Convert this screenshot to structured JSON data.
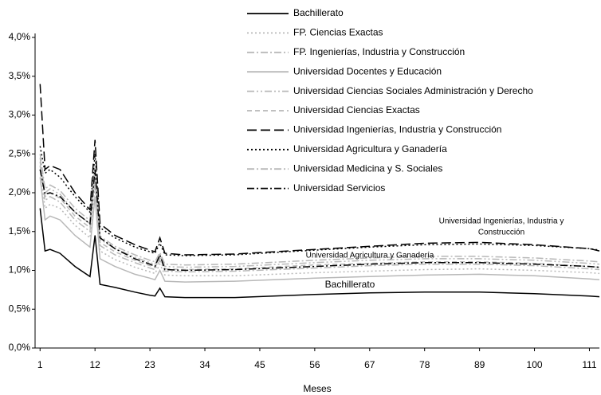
{
  "chart_data": {
    "type": "line",
    "xlabel": "Meses",
    "x": [
      1,
      2,
      3,
      5,
      8,
      11,
      12,
      13,
      16,
      20,
      23,
      24,
      25,
      26,
      30,
      40,
      56,
      67,
      78,
      89,
      100,
      111,
      113
    ],
    "xlim": [
      0,
      113
    ],
    "xticks": [
      1,
      12,
      23,
      34,
      45,
      56,
      67,
      78,
      89,
      100,
      111
    ],
    "ylim": [
      0,
      4
    ],
    "yticks": [
      {
        "value": 0,
        "label": "0,0%"
      },
      {
        "value": 0.5,
        "label": "0,5%"
      },
      {
        "value": 1,
        "label": "1,0%"
      },
      {
        "value": 1.5,
        "label": "1,5%"
      },
      {
        "value": 2,
        "label": "2,0%"
      },
      {
        "value": 2.5,
        "label": "2,5%"
      },
      {
        "value": 3,
        "label": "3,0%"
      },
      {
        "value": 3.5,
        "label": "3,5%"
      },
      {
        "value": 4,
        "label": "4,0%"
      }
    ],
    "legend": "top",
    "series": [
      {
        "name": "Bachillerato",
        "color": "#000000",
        "dash": "solid",
        "values": [
          1.8,
          1.25,
          1.27,
          1.22,
          1.05,
          0.92,
          1.45,
          0.82,
          0.78,
          0.72,
          0.68,
          0.67,
          0.77,
          0.66,
          0.65,
          0.65,
          0.69,
          0.71,
          0.72,
          0.72,
          0.7,
          0.67,
          0.66
        ]
      },
      {
        "name": "FP. Ciencias Exactas",
        "color": "#b8b8b8",
        "dash": "dotted",
        "values": [
          2.3,
          1.8,
          1.85,
          1.8,
          1.58,
          1.42,
          2.1,
          1.25,
          1.14,
          1.04,
          0.98,
          0.96,
          1.08,
          0.94,
          0.93,
          0.93,
          0.97,
          0.99,
          1.01,
          1.02,
          1.0,
          0.97,
          0.96
        ]
      },
      {
        "name": "FP.  Ingenierías, Industria y Construcción",
        "color": "#b8b8b8",
        "dash": "dash-dot",
        "values": [
          2.35,
          1.9,
          1.95,
          1.88,
          1.65,
          1.5,
          2.2,
          1.32,
          1.2,
          1.1,
          1.03,
          1.01,
          1.13,
          0.99,
          0.98,
          0.99,
          1.03,
          1.06,
          1.08,
          1.08,
          1.06,
          1.02,
          1.01
        ]
      },
      {
        "name": "Universidad Docentes y Educación",
        "color": "#b8b8b8",
        "dash": "solid",
        "values": [
          2.2,
          1.65,
          1.7,
          1.65,
          1.45,
          1.3,
          1.95,
          1.15,
          1.05,
          0.95,
          0.9,
          0.88,
          1.0,
          0.86,
          0.85,
          0.86,
          0.9,
          0.92,
          0.94,
          0.95,
          0.93,
          0.89,
          0.88
        ]
      },
      {
        "name": "Universidad Ciencias Sociales Administración y Derecho",
        "color": "#b8b8b8",
        "dash": "dash-dot-dot",
        "values": [
          2.45,
          2.0,
          2.05,
          1.98,
          1.75,
          1.6,
          2.3,
          1.4,
          1.28,
          1.17,
          1.1,
          1.08,
          1.2,
          1.05,
          1.04,
          1.05,
          1.1,
          1.13,
          1.15,
          1.15,
          1.13,
          1.09,
          1.08
        ]
      },
      {
        "name": "Universidad Ciencias Exactas",
        "color": "#b8b8b8",
        "dash": "dashed",
        "values": [
          2.4,
          1.95,
          2.0,
          1.93,
          1.7,
          1.55,
          2.25,
          1.36,
          1.24,
          1.13,
          1.06,
          1.04,
          1.16,
          1.02,
          1.01,
          1.02,
          1.07,
          1.09,
          1.11,
          1.11,
          1.09,
          1.05,
          1.04
        ]
      },
      {
        "name": "Universidad Ingenierías, Industria y Construcción",
        "color": "#000000",
        "dash": "long-dash",
        "values": [
          3.4,
          2.3,
          2.35,
          2.3,
          2.0,
          1.78,
          2.68,
          1.6,
          1.45,
          1.33,
          1.26,
          1.24,
          1.42,
          1.22,
          1.2,
          1.21,
          1.27,
          1.31,
          1.35,
          1.36,
          1.33,
          1.28,
          1.25
        ]
      },
      {
        "name": "Universidad Agricultura y Ganadería",
        "color": "#000000",
        "dash": "dotted",
        "values": [
          2.6,
          2.25,
          2.3,
          2.2,
          1.95,
          1.75,
          2.5,
          1.55,
          1.42,
          1.3,
          1.24,
          1.22,
          1.35,
          1.2,
          1.19,
          1.2,
          1.26,
          1.3,
          1.33,
          1.34,
          1.32,
          1.28,
          1.26
        ]
      },
      {
        "name": "Universidad Medicina y S. Sociales",
        "color": "#b8b8b8",
        "dash": "dash-dot",
        "values": [
          2.5,
          2.05,
          2.1,
          2.03,
          1.8,
          1.64,
          2.35,
          1.44,
          1.31,
          1.2,
          1.13,
          1.11,
          1.23,
          1.08,
          1.07,
          1.08,
          1.13,
          1.16,
          1.18,
          1.18,
          1.16,
          1.12,
          1.11
        ]
      },
      {
        "name": "Universidad Servicios",
        "color": "#000000",
        "dash": "dash-dot",
        "values": [
          2.3,
          1.98,
          2.0,
          1.95,
          1.75,
          1.6,
          2.3,
          1.42,
          1.28,
          1.15,
          1.08,
          1.05,
          1.2,
          1.01,
          1.0,
          1.01,
          1.05,
          1.08,
          1.1,
          1.1,
          1.08,
          1.05,
          1.04
        ]
      }
    ],
    "annotations": [
      {
        "lines": [
          "Universidad Ingenierías, Industria y",
          "Construcción"
        ]
      },
      {
        "lines": [
          "Universidad Agricultura y Ganadería"
        ]
      },
      {
        "lines": [
          "Bachillerato"
        ]
      }
    ]
  }
}
